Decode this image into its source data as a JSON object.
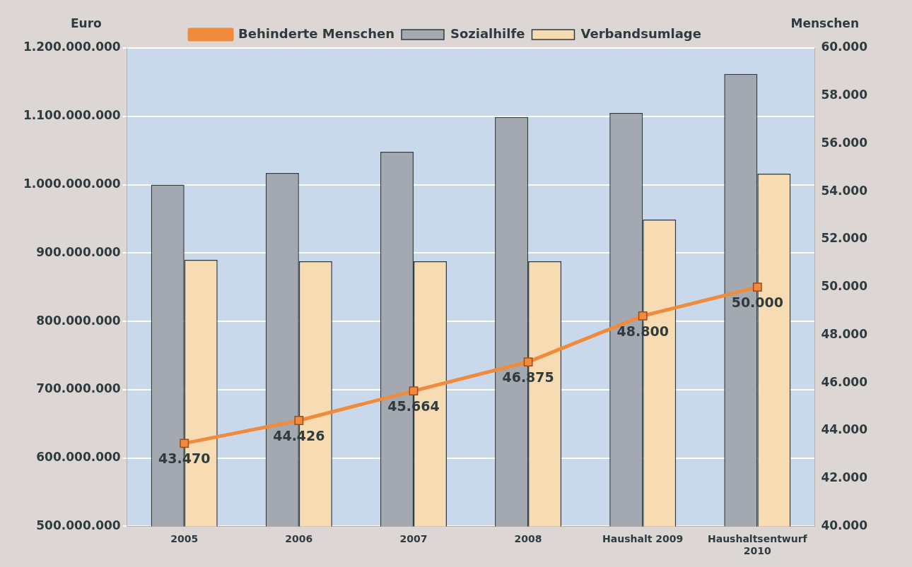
{
  "chart_data": {
    "type": "bar",
    "ylabel": "Euro",
    "y2label": "Menschen",
    "categories": [
      "2005",
      "2006",
      "2007",
      "2008",
      "Haushalt 2009",
      "Haushaltsentwurf 2010"
    ],
    "series": [
      {
        "name": "Sozialhilfe",
        "color": "#a4a8b0",
        "values": [
          1000000000,
          1017000000,
          1048000000,
          1099000000,
          1105000000,
          1162000000
        ]
      },
      {
        "name": "Verbandsumlage",
        "color": "#f7dbb3",
        "values": [
          890000000,
          888000000,
          888000000,
          888000000,
          949000000,
          1016000000
        ]
      },
      {
        "name": "Behinderte Menschen",
        "type": "line",
        "axis": "y2",
        "color": "#f08a3c",
        "marker": "square",
        "values": [
          43470,
          44426,
          45664,
          46875,
          48800,
          50000
        ],
        "value_labels": [
          "43.470",
          "44.426",
          "45.664",
          "46.875",
          "48.800",
          "50.000"
        ]
      }
    ],
    "ylim": [
      500000000,
      1200000000
    ],
    "yticks": [
      {
        "value": 500000000,
        "label": "500.000.000"
      },
      {
        "value": 600000000,
        "label": "600.000.000"
      },
      {
        "value": 700000000,
        "label": "700.000.000"
      },
      {
        "value": 800000000,
        "label": "800.000.000"
      },
      {
        "value": 900000000,
        "label": "900.000.000"
      },
      {
        "value": 1000000000,
        "label": "1.000.000.000"
      },
      {
        "value": 1100000000,
        "label": "1.100.000.000"
      },
      {
        "value": 1200000000,
        "label": "1.200.000.000"
      }
    ],
    "y2lim": [
      40000,
      60000
    ],
    "y2ticks": [
      {
        "value": 40000,
        "label": "40.000"
      },
      {
        "value": 42000,
        "label": "42.000"
      },
      {
        "value": 44000,
        "label": "44.000"
      },
      {
        "value": 46000,
        "label": "46.000"
      },
      {
        "value": 48000,
        "label": "48.000"
      },
      {
        "value": 50000,
        "label": "50.000"
      },
      {
        "value": 52000,
        "label": "52.000"
      },
      {
        "value": 54000,
        "label": "54.000"
      },
      {
        "value": 56000,
        "label": "56.000"
      },
      {
        "value": 58000,
        "label": "58.000"
      },
      {
        "value": 60000,
        "label": "60.000"
      }
    ],
    "grid": "y",
    "legend": "top"
  }
}
